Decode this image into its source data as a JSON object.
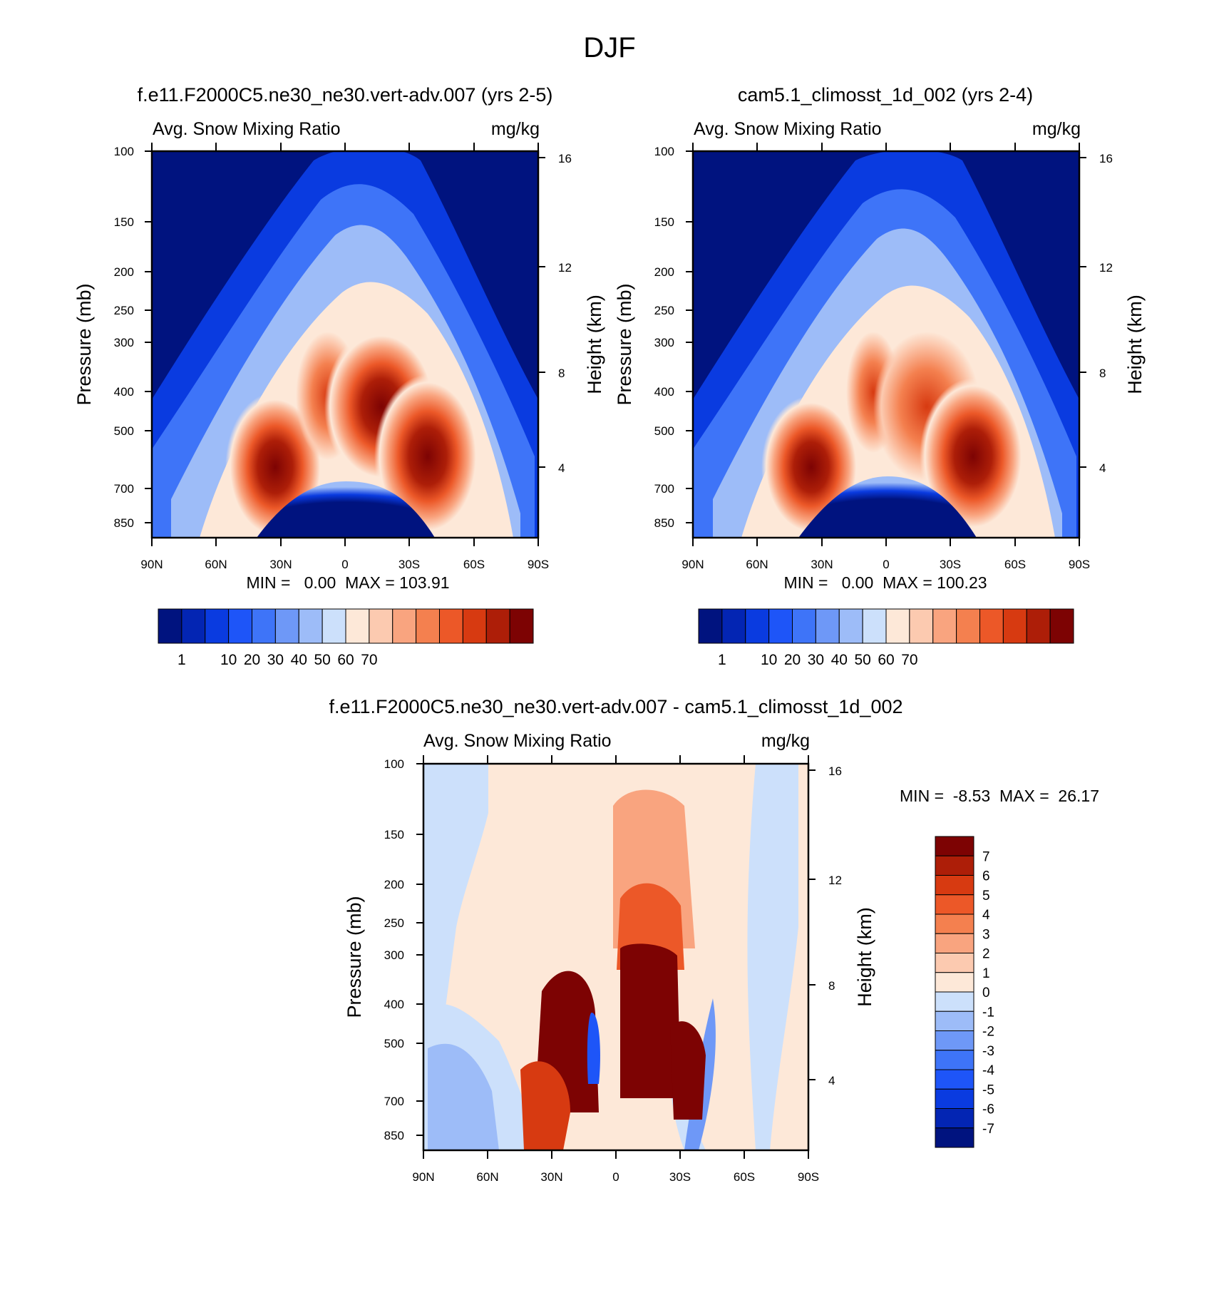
{
  "figure_title": "DJF",
  "colors": {
    "main_palette": [
      "#00137f",
      "#0325b3",
      "#0a3be0",
      "#1e55f8",
      "#3e74f8",
      "#6e98f7",
      "#9dbcf8",
      "#cce0fb",
      "#fde8d8",
      "#fccab0",
      "#f9a47f",
      "#f4804f",
      "#ec5828",
      "#d73a11",
      "#ad1e08",
      "#7d0303"
    ],
    "diff_palette": [
      "#00137f",
      "#0325b3",
      "#0a3be0",
      "#1e55f8",
      "#3e74f8",
      "#6e98f7",
      "#9dbcf8",
      "#cce0fb",
      "#fde8d8",
      "#fccab0",
      "#f9a47f",
      "#f4804f",
      "#ec5828",
      "#d73a11",
      "#ad1e08",
      "#7d0303"
    ]
  },
  "chart_data": [
    {
      "type": "heatmap",
      "panel_title": "f.e11.F2000C5.ne30_ne30.vert-adv.007 (yrs 2-5)",
      "left_label": "Avg. Snow Mixing Ratio",
      "right_label": "mg/kg",
      "ylabel": "Pressure (mb)",
      "ylabel_right": "Height (km)",
      "ylim": [
        1000,
        100
      ],
      "y_ticks": [
        "100",
        "150",
        "200",
        "250",
        "300",
        "400",
        "500",
        "700",
        "850"
      ],
      "y_tick_values": [
        100,
        150,
        200,
        250,
        300,
        400,
        500,
        700,
        850
      ],
      "height_ticks": [
        "16",
        "12",
        "8",
        "4"
      ],
      "height_tick_values": [
        16,
        12,
        8,
        4
      ],
      "x_ticks": [
        "90N",
        "60N",
        "30N",
        "0",
        "30S",
        "60S",
        "90S"
      ],
      "x_tick_values": [
        90,
        60,
        30,
        0,
        -30,
        -60,
        -90
      ],
      "xlim": [
        90,
        -90
      ],
      "stats": {
        "min": "0.00",
        "max": "103.91"
      },
      "min_max_text": "MIN =   0.00  MAX = 103.91",
      "colorbar_labels": [
        "1",
        "10",
        "20",
        "30",
        "40",
        "50",
        "60",
        "70"
      ],
      "description": "Snow mixing ratio latitude-pressure cross-section: low values above ~200 mb, maxima ~70+ mg/kg near 30N (600 mb), 10S (400 mb) and 40S (550 mb); minimum dome below 700 mb between 25N and 30S."
    },
    {
      "type": "heatmap",
      "panel_title": "cam5.1_climosst_1d_002 (yrs 2-4)",
      "left_label": "Avg. Snow Mixing Ratio",
      "right_label": "mg/kg",
      "ylabel": "Pressure (mb)",
      "ylabel_right": "Height (km)",
      "ylim": [
        1000,
        100
      ],
      "y_ticks": [
        "100",
        "150",
        "200",
        "250",
        "300",
        "400",
        "500",
        "700",
        "850"
      ],
      "y_tick_values": [
        100,
        150,
        200,
        250,
        300,
        400,
        500,
        700,
        850
      ],
      "height_ticks": [
        "16",
        "12",
        "8",
        "4"
      ],
      "height_tick_values": [
        16,
        12,
        8,
        4
      ],
      "x_ticks": [
        "90N",
        "60N",
        "30N",
        "0",
        "30S",
        "60S",
        "90S"
      ],
      "x_tick_values": [
        90,
        60,
        30,
        0,
        -30,
        -60,
        -90
      ],
      "xlim": [
        90,
        -90
      ],
      "stats": {
        "min": "0.00",
        "max": "100.23"
      },
      "min_max_text": "MIN =   0.00  MAX = 100.23",
      "colorbar_labels": [
        "1",
        "10",
        "20",
        "30",
        "40",
        "50",
        "60",
        "70"
      ]
    },
    {
      "type": "heatmap",
      "panel_title": "f.e11.F2000C5.ne30_ne30.vert-adv.007 - cam5.1_climosst_1d_002",
      "left_label": "Avg. Snow Mixing Ratio",
      "right_label": "mg/kg",
      "ylabel": "Pressure (mb)",
      "ylabel_right": "Height (km)",
      "ylim": [
        1000,
        100
      ],
      "y_ticks": [
        "100",
        "150",
        "200",
        "250",
        "300",
        "400",
        "500",
        "700",
        "850"
      ],
      "y_tick_values": [
        100,
        150,
        200,
        250,
        300,
        400,
        500,
        700,
        850
      ],
      "height_ticks": [
        "16",
        "12",
        "8",
        "4"
      ],
      "height_tick_values": [
        16,
        12,
        8,
        4
      ],
      "x_ticks": [
        "90N",
        "60N",
        "30N",
        "0",
        "30S",
        "60S",
        "90S"
      ],
      "x_tick_values": [
        90,
        60,
        30,
        0,
        -30,
        -60,
        -90
      ],
      "xlim": [
        90,
        -90
      ],
      "stats": {
        "min": "-8.53",
        "max": "26.17"
      },
      "min_max_text": "MIN =  -8.53  MAX =  26.17",
      "colorbar_labels": [
        "7",
        "6",
        "5",
        "4",
        "3",
        "2",
        "1",
        "0",
        "-1",
        "-2",
        "-3",
        "-4",
        "-5",
        "-6",
        "-7"
      ]
    }
  ]
}
